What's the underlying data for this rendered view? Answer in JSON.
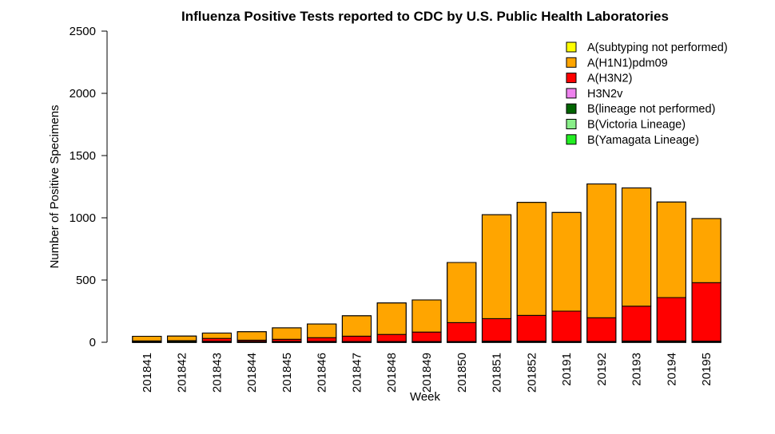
{
  "chart_data": {
    "type": "bar",
    "stacked": true,
    "title": "Influenza Positive Tests reported to CDC by U.S. Public Health Laboratories",
    "xlabel": "Week",
    "ylabel": "Number of Positive Specimens",
    "ylim": [
      0,
      2500
    ],
    "yticks": [
      0,
      500,
      1000,
      1500,
      2000,
      2500
    ],
    "grid": false,
    "legend_position": "top-right",
    "categories": [
      "201841",
      "201842",
      "201843",
      "201844",
      "201845",
      "201846",
      "201847",
      "201848",
      "201849",
      "201850",
      "201851",
      "201852",
      "20191",
      "20192",
      "20193",
      "20194",
      "20195"
    ],
    "series": [
      {
        "name": "B(Yamagata Lineage)",
        "color": "#22ee22",
        "values": [
          1,
          1,
          1,
          1,
          1,
          1,
          1,
          1,
          1,
          1,
          1,
          1,
          1,
          1,
          1,
          1,
          1
        ]
      },
      {
        "name": "B(Victoria Lineage)",
        "color": "#88ee88",
        "values": [
          1,
          1,
          1,
          1,
          1,
          1,
          1,
          1,
          1,
          1,
          2,
          2,
          1,
          1,
          2,
          2,
          2
        ]
      },
      {
        "name": "B(lineage not performed)",
        "color": "#006400",
        "values": [
          6,
          8,
          6,
          5,
          5,
          5,
          4,
          4,
          4,
          4,
          6,
          6,
          5,
          5,
          7,
          8,
          6
        ]
      },
      {
        "name": "H3N2v",
        "color": "#ee82ee",
        "values": [
          0,
          0,
          0,
          0,
          0,
          0,
          0,
          0,
          0,
          0,
          0,
          0,
          0,
          0,
          0,
          0,
          0
        ]
      },
      {
        "name": "A(H3N2)",
        "color": "#ff0000",
        "values": [
          3,
          3,
          23,
          10,
          17,
          30,
          43,
          57,
          76,
          152,
          181,
          207,
          243,
          190,
          280,
          348,
          470
        ]
      },
      {
        "name": "A(H1N1)pdm09",
        "color": "#ffa500",
        "values": [
          37,
          37,
          43,
          68,
          92,
          110,
          164,
          253,
          258,
          483,
          835,
          908,
          793,
          1075,
          950,
          768,
          515
        ]
      },
      {
        "name": "A(subtyping not performed)",
        "color": "#ffff00",
        "values": [
          0,
          0,
          0,
          0,
          0,
          0,
          0,
          0,
          0,
          0,
          0,
          0,
          0,
          0,
          0,
          0,
          0
        ]
      }
    ]
  }
}
